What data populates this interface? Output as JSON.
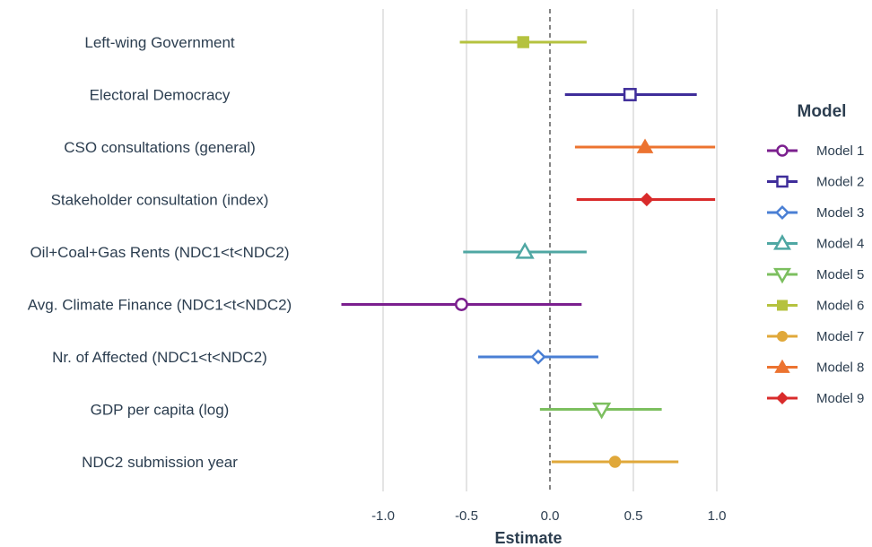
{
  "chart_data": {
    "type": "scatter",
    "subtype": "coefficient-plot",
    "xlabel": "Estimate",
    "xlim": [
      -1.3,
      1.05
    ],
    "xticks": [
      -1.0,
      -0.5,
      0.0,
      0.5,
      1.0
    ],
    "xtick_labels": [
      "-1.0",
      "-0.5",
      "0.0",
      "0.5",
      "1.0"
    ],
    "reference_line": 0,
    "grid": "vertical",
    "legend": {
      "title": "Model",
      "placement": "right"
    },
    "terms": [
      "Left-wing Government",
      "Electoral Democracy",
      "CSO consultations (general)",
      "Stakeholder consultation (index)",
      "Oil+Coal+Gas Rents (NDC1<t<NDC2)",
      "Avg. Climate Finance (NDC1<t<NDC2)",
      "Nr. of Affected (NDC1<t<NDC2)",
      "GDP per capita (log)",
      "NDC2 submission year"
    ],
    "series": [
      {
        "name": "Model 1",
        "color": "#7b1f8e",
        "marker": "circle-open",
        "term": "Avg. Climate Finance (NDC1<t<NDC2)",
        "estimate": -0.53,
        "ci": [
          -1.25,
          0.19
        ]
      },
      {
        "name": "Model 2",
        "color": "#3f2d9a",
        "marker": "square-open",
        "term": "Electoral Democracy",
        "estimate": 0.48,
        "ci": [
          0.09,
          0.88
        ]
      },
      {
        "name": "Model 3",
        "color": "#4a7fd4",
        "marker": "diamond-open",
        "term": "Nr. of Affected (NDC1<t<NDC2)",
        "estimate": -0.07,
        "ci": [
          -0.43,
          0.29
        ]
      },
      {
        "name": "Model 4",
        "color": "#4fa7a3",
        "marker": "triangle-up-open",
        "term": "Oil+Coal+Gas Rents (NDC1<t<NDC2)",
        "estimate": -0.15,
        "ci": [
          -0.52,
          0.22
        ]
      },
      {
        "name": "Model 5",
        "color": "#7cbf5f",
        "marker": "triangle-down-open",
        "term": "GDP per capita (log)",
        "estimate": 0.31,
        "ci": [
          -0.06,
          0.67
        ]
      },
      {
        "name": "Model 6",
        "color": "#b5c23f",
        "marker": "square",
        "term": "Left-wing Government",
        "estimate": -0.16,
        "ci": [
          -0.54,
          0.22
        ]
      },
      {
        "name": "Model 7",
        "color": "#e0a83a",
        "marker": "circle",
        "term": "NDC2 submission year",
        "estimate": 0.39,
        "ci": [
          0.01,
          0.77
        ]
      },
      {
        "name": "Model 8",
        "color": "#ec7330",
        "marker": "triangle-up",
        "term": "CSO consultations (general)",
        "estimate": 0.57,
        "ci": [
          0.15,
          0.99
        ]
      },
      {
        "name": "Model 9",
        "color": "#d92b2b",
        "marker": "diamond",
        "term": "Stakeholder consultation (index)",
        "estimate": 0.58,
        "ci": [
          0.16,
          0.99
        ]
      }
    ]
  }
}
